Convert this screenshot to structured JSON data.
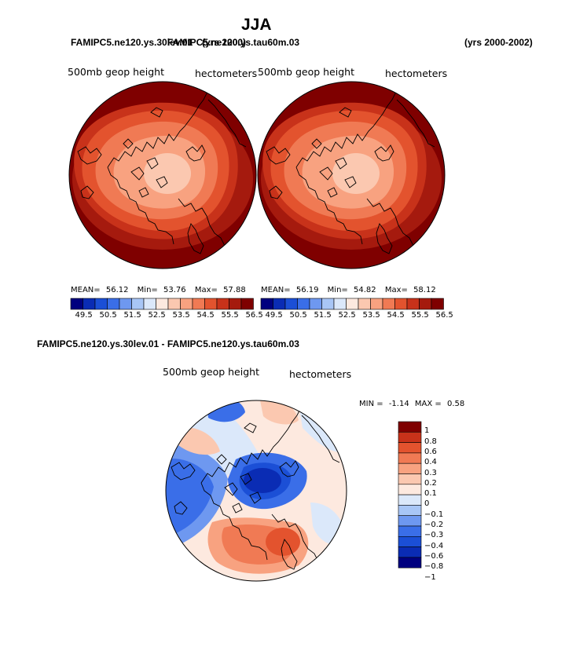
{
  "figure": {
    "title": "JJA",
    "header_left_a": "FAMIPC5.ne120.ys.30lev.01",
    "header_left_b": "FAMIPC5.ne120.ys.tau60m.03",
    "header_mid_a": "(yrs 2000)",
    "header_right": "(yrs 2000-2002)",
    "diff_title": "FAMIPC5.ne120.ys.30lev.01 - FAMIPC5.ne120.ys.tau60m.03"
  },
  "panels": [
    {
      "variable": "500mb geop height",
      "units": "hectometers",
      "mean_label": "MEAN=",
      "mean": "56.12",
      "min_label": "Min=",
      "min": "53.76",
      "max_label": "Max=",
      "max": "57.88"
    },
    {
      "variable": "500mb geop height",
      "units": "hectometers",
      "mean_label": "MEAN=",
      "mean": "56.19",
      "min_label": "Min=",
      "min": "54.82",
      "max_label": "Max=",
      "max": "58.12"
    }
  ],
  "diff_panel": {
    "variable": "500mb geop height",
    "units": "hectometers",
    "min_label": "MIN =",
    "min": "-1.14",
    "max_label": "MAX =",
    "max": "0.58"
  },
  "field_colorbar": {
    "colors": [
      "#00007f",
      "#0a2cb4",
      "#1b4fd6",
      "#3a6ee8",
      "#6e98f0",
      "#a8c6f6",
      "#dbe8fa",
      "#fde9df",
      "#fbc8b0",
      "#f8a280",
      "#f07a54",
      "#e3532e",
      "#c8321a",
      "#a51a0e",
      "#7f0000"
    ],
    "tick_labels": [
      "49.5",
      "50.5",
      "51.5",
      "52.5",
      "53.5",
      "54.5",
      "55.5",
      "56.5"
    ]
  },
  "diff_colorbar": {
    "colors": [
      "#7f0000",
      "#c8321a",
      "#e3532e",
      "#f07a54",
      "#f8a280",
      "#fbc8b0",
      "#fde9df",
      "#dbe8fa",
      "#a8c6f6",
      "#6e98f0",
      "#3a6ee8",
      "#1b4fd6",
      "#0a2cb4",
      "#00007f"
    ],
    "tick_labels": [
      "1",
      "0.8",
      "0.6",
      "0.4",
      "0.3",
      "0.2",
      "0.1",
      "0",
      "−0.1",
      "−0.2",
      "−0.3",
      "−0.4",
      "−0.6",
      "−0.8",
      "−1"
    ]
  }
}
